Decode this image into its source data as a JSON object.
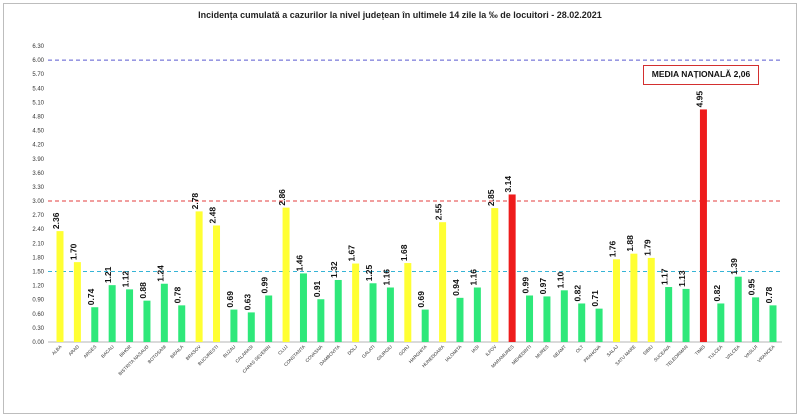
{
  "chart_data": {
    "type": "bar",
    "title": "Incidența cumulată a cazurilor la nivel județean în ultimele 14 zile la ‰ de locuitori - 28.02.2021",
    "ylim": [
      0,
      6.3
    ],
    "yticks": [
      "0.00",
      "0.30",
      "0.60",
      "0.90",
      "1.20",
      "1.50",
      "1.80",
      "2.10",
      "2.40",
      "2.70",
      "3.00",
      "3.30",
      "3.60",
      "3.90",
      "4.20",
      "4.50",
      "4.80",
      "5.10",
      "5.40",
      "5.70",
      "6.00",
      "6.30"
    ],
    "categories": [
      "ALBA",
      "ARAD",
      "ARGES",
      "BACAU",
      "BIHOR",
      "BISTRITA NASAUD",
      "BOTOSANI",
      "BRAILA",
      "BRASOV",
      "BUCURESTI",
      "BUZAU",
      "CALARASI",
      "CARAS SEVERIN",
      "CLUJ",
      "CONSTANTA",
      "COVASNA",
      "DAMBOVITA",
      "DOLJ",
      "GALATI",
      "GIURGIU",
      "GORJ",
      "HARGHITA",
      "HUNEDOARA",
      "IALOMITA",
      "IASI",
      "ILFOV",
      "MARAMURES",
      "MEHEDINTI",
      "MURES",
      "NEAMT",
      "OLT",
      "PRAHOVA",
      "SALAJ",
      "SATU MARE",
      "SIBIU",
      "SUCEAVA",
      "TELEORMAN",
      "TIMIS",
      "TULCEA",
      "VALCEA",
      "VASLUI",
      "VRANCEA"
    ],
    "values": [
      2.36,
      1.7,
      0.74,
      1.21,
      1.12,
      0.88,
      1.24,
      0.78,
      2.78,
      2.48,
      0.69,
      0.63,
      0.99,
      2.86,
      1.46,
      0.91,
      1.32,
      1.67,
      1.25,
      1.16,
      1.68,
      0.69,
      2.55,
      0.94,
      1.16,
      2.85,
      3.14,
      0.99,
      0.97,
      1.1,
      0.82,
      0.71,
      1.76,
      1.88,
      1.79,
      1.17,
      1.13,
      4.95,
      0.82,
      1.39,
      0.95,
      0.78
    ],
    "labels": [
      "2.36",
      "1.70",
      "0.74",
      "1.21",
      "1.12",
      "0.88",
      "1.24",
      "0.78",
      "2.78",
      "2.48",
      "0.69",
      "0.63",
      "0.99",
      "2.86",
      "1.46",
      "0.91",
      "1.32",
      "1.67",
      "1.25",
      "1.16",
      "1.68",
      "0.69",
      "2.55",
      "0.94",
      "1.16",
      "2.85",
      "3.14",
      "0.99",
      "0.97",
      "1.10",
      "0.82",
      "0.71",
      "1.76",
      "1.88",
      "1.79",
      "1.17",
      "1.13",
      "4.95",
      "0.82",
      "1.39",
      "0.95",
      "0.78"
    ],
    "colors": {
      "green": "#2ee87a",
      "yellow": "#ffff33",
      "red": "#ee1c1c"
    },
    "thresholds": [
      {
        "value": 1.5,
        "color": "#35b4d6"
      },
      {
        "value": 3.0,
        "color": "#e33c3c"
      },
      {
        "value": 6.0,
        "color": "#5a5ad0"
      }
    ],
    "legend": {
      "text": "MEDIA NAȚIONALĂ 2,06",
      "placement": "top-right"
    },
    "grid": false
  }
}
